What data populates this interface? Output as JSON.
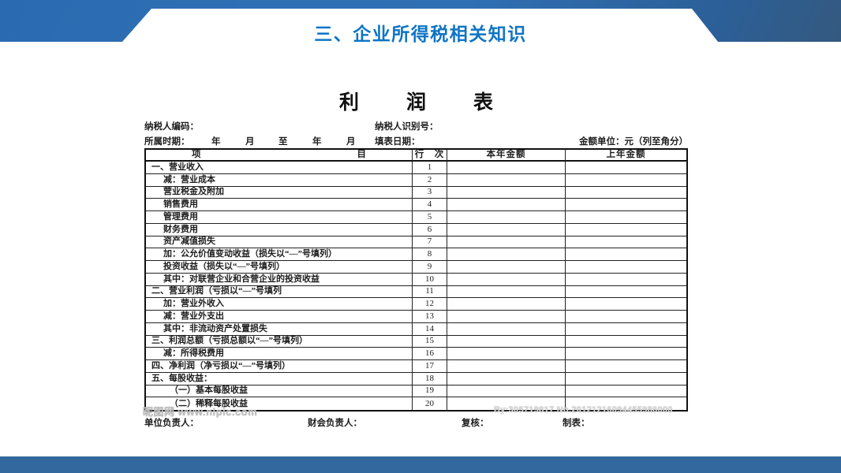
{
  "slide": {
    "title": "三、企业所得税相关知识",
    "colors": {
      "banner_blue": "#2f6fb4",
      "bottom_bar_blue": "#33689f",
      "title_blue": "#0e74c6",
      "form_ink": "#1c1c1c"
    }
  },
  "form": {
    "title_chars": {
      "c1": "利",
      "c2": "润",
      "c3": "表"
    },
    "meta": {
      "taxpayer_code_label": "纳税人编码：",
      "taxpayer_id_label": "纳税人识别号：",
      "period_label": "所属时期：",
      "period_year1": "年",
      "period_month1": "月",
      "period_to": "至",
      "period_year2": "年",
      "period_month2": "月",
      "fill_date_label": "填表日期：",
      "unit_label": "金额单位：元（列至角分）"
    },
    "table": {
      "headers": {
        "item_char1": "项",
        "item_char2": "目",
        "line_no": "行　次",
        "current_year": "本年金额",
        "prior_year": "上年金额"
      },
      "rows": [
        {
          "item": "一、营业收入",
          "line": "1",
          "indent": 0,
          "current": "",
          "prior": ""
        },
        {
          "item": "减：营业成本",
          "line": "2",
          "indent": 1,
          "current": "",
          "prior": ""
        },
        {
          "item": "营业税金及附加",
          "line": "3",
          "indent": 1,
          "current": "",
          "prior": ""
        },
        {
          "item": "销售费用",
          "line": "4",
          "indent": 1,
          "current": "",
          "prior": ""
        },
        {
          "item": "管理费用",
          "line": "5",
          "indent": 1,
          "current": "",
          "prior": ""
        },
        {
          "item": "财务费用",
          "line": "6",
          "indent": 1,
          "current": "",
          "prior": ""
        },
        {
          "item": "资产减值损失",
          "line": "7",
          "indent": 1,
          "current": "",
          "prior": ""
        },
        {
          "item": "加：公允价值变动收益（损失以“—”号填列）",
          "line": "8",
          "indent": 1,
          "current": "",
          "prior": ""
        },
        {
          "item": "投资收益（损失以“—”号填列）",
          "line": "9",
          "indent": 1,
          "current": "",
          "prior": ""
        },
        {
          "item": "其中：对联营企业和合营企业的投资收益",
          "line": "10",
          "indent": 1,
          "current": "",
          "prior": ""
        },
        {
          "item": "二、营业利润（亏损以“—”号填列",
          "line": "11",
          "indent": 0,
          "current": "",
          "prior": ""
        },
        {
          "item": "加：营业外收入",
          "line": "12",
          "indent": 1,
          "current": "",
          "prior": ""
        },
        {
          "item": "减：营业外支出",
          "line": "13",
          "indent": 1,
          "current": "",
          "prior": ""
        },
        {
          "item": "其中：非流动资产处置损失",
          "line": "14",
          "indent": 1,
          "current": "",
          "prior": ""
        },
        {
          "item": "三、利润总额（亏损总额以“—”号填列）",
          "line": "15",
          "indent": 0,
          "current": "",
          "prior": ""
        },
        {
          "item": "减：所得税费用",
          "line": "16",
          "indent": 1,
          "current": "",
          "prior": ""
        },
        {
          "item": "四、净利润（净亏损以“—”号填列）",
          "line": "17",
          "indent": 0,
          "current": "",
          "prior": ""
        },
        {
          "item": "五、每股收益：",
          "line": "18",
          "indent": 0,
          "current": "",
          "prior": ""
        },
        {
          "item": "（一）基本每股收益",
          "line": "19",
          "indent": 2,
          "current": "",
          "prior": ""
        },
        {
          "item": "（二）稀释每股收益",
          "line": "20",
          "indent": 2,
          "current": "",
          "prior": ""
        }
      ]
    },
    "signature": {
      "unit_head_label": "单位负责人：",
      "finance_head_label": "财会负责人：",
      "review_label": "复核：",
      "preparer_label": "制表："
    },
    "watermarks": {
      "left": "昵图网 www.nipic.com",
      "right": "By:305719817 No.20121216094455986000"
    }
  }
}
